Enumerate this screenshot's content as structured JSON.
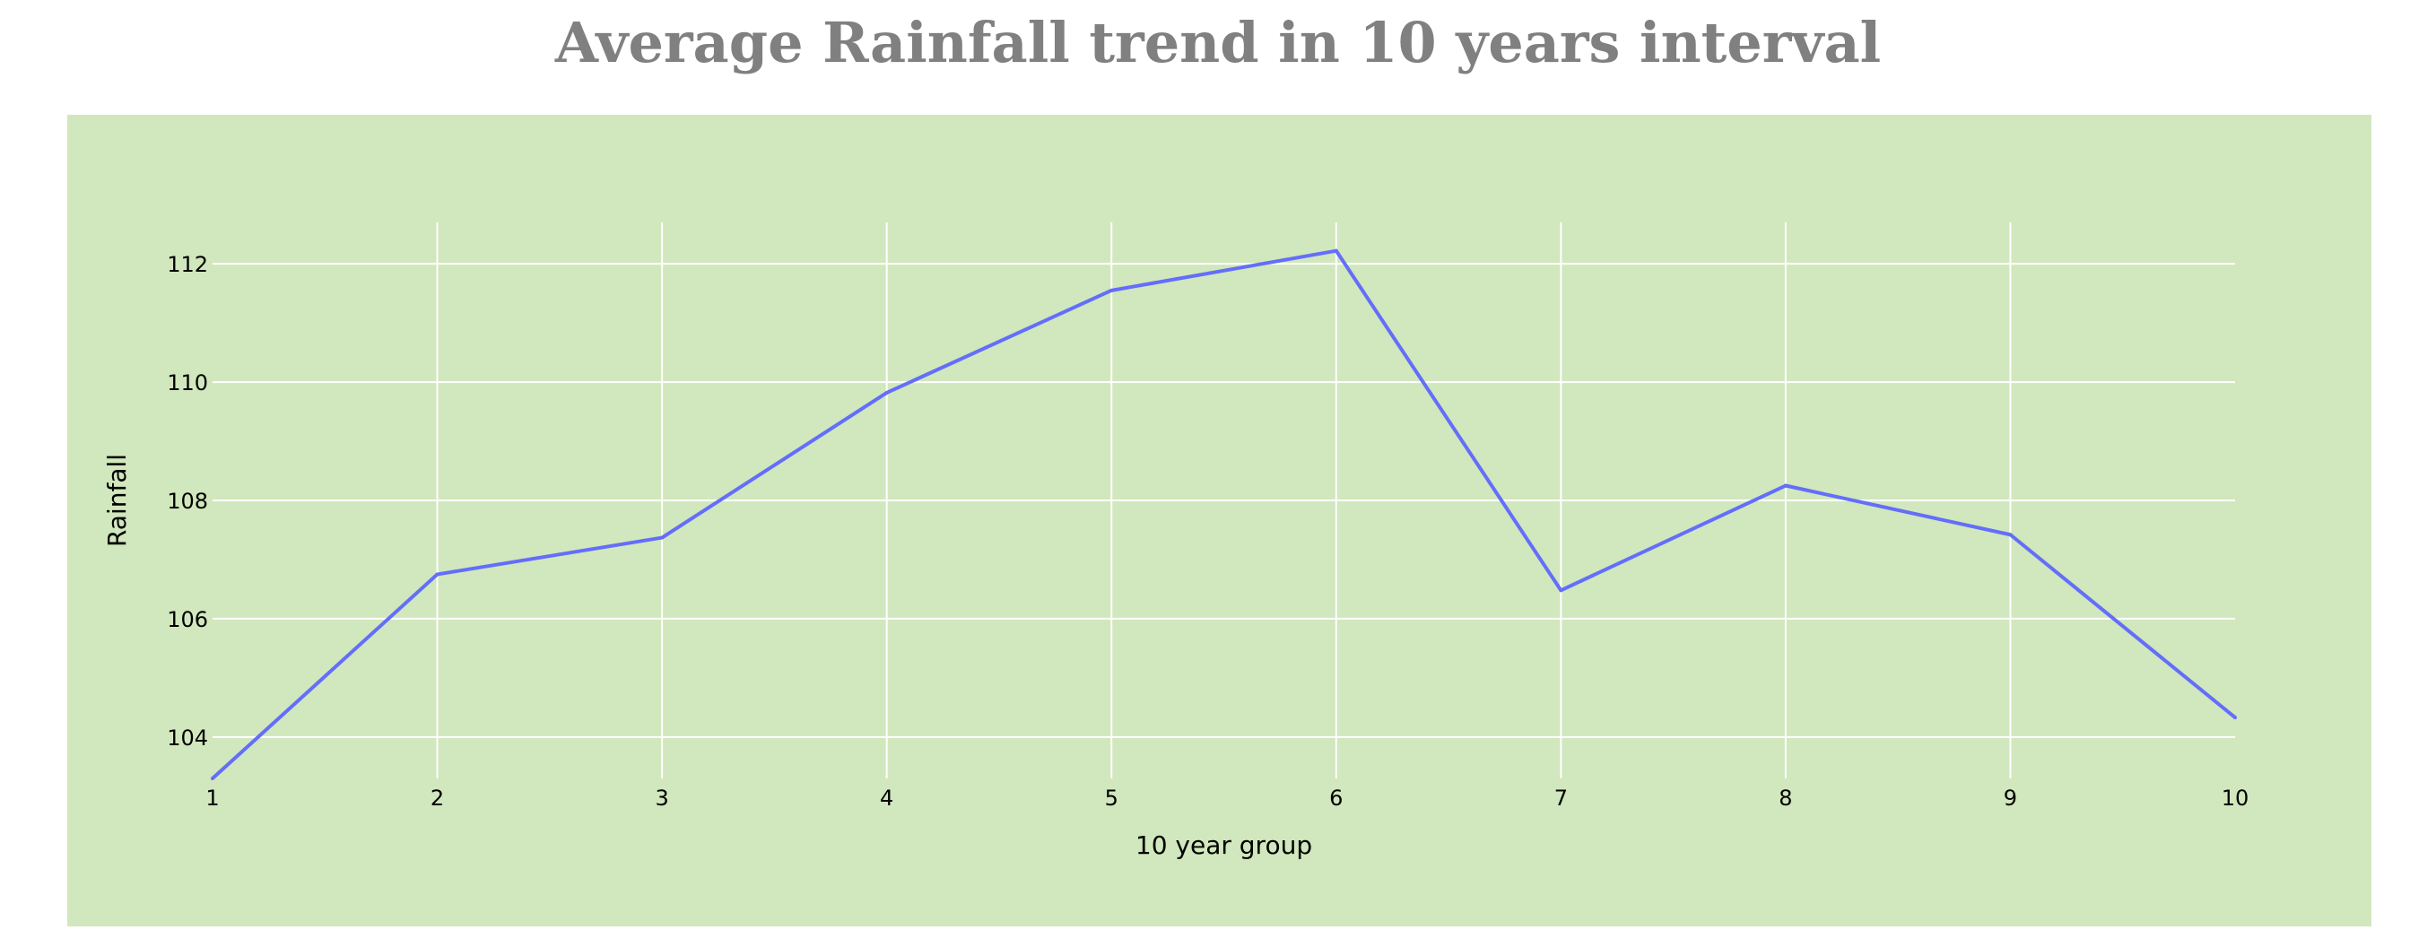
{
  "chart_data": {
    "type": "line",
    "title": "Average Rainfall trend in 10 years interval",
    "xlabel": "10 year group",
    "ylabel": "Rainfall",
    "x": [
      1,
      2,
      3,
      4,
      5,
      6,
      7,
      8,
      9,
      10
    ],
    "y": [
      103.3,
      106.75,
      107.37,
      109.82,
      111.55,
      112.22,
      106.48,
      108.25,
      107.42,
      104.33
    ],
    "x_ticks": [
      1,
      2,
      3,
      4,
      5,
      6,
      7,
      8,
      9,
      10
    ],
    "y_ticks": [
      104,
      106,
      108,
      110,
      112
    ],
    "xlim": [
      1,
      10
    ],
    "ylim": [
      103.3,
      112.7
    ],
    "grid": true,
    "legend": "none",
    "line_color": "#636efa",
    "plot_background": "#d1e7bd",
    "grid_color": "#ffffff",
    "title_color": "#808080"
  }
}
